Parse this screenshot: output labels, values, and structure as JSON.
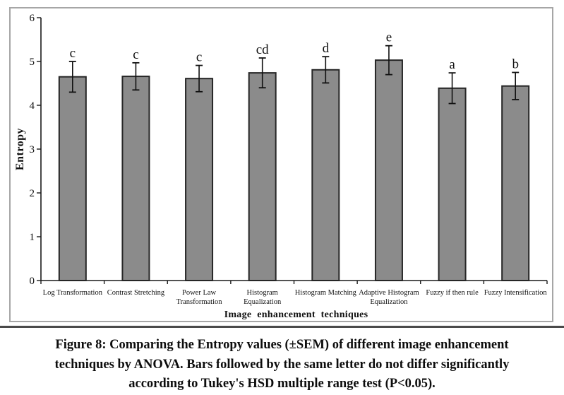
{
  "figure": {
    "caption": {
      "line1": "Figure 8: Comparing the Entropy values (±SEM) of different image enhancement",
      "line2": "techniques by ANOVA. Bars followed by the same letter do not differ significantly",
      "line3": "according to Tukey's HSD multiple range test (P<0.05)."
    }
  },
  "chart_data": {
    "type": "bar",
    "title": "",
    "xlabel": "Image enhancement techniques",
    "ylabel": "Entropy",
    "ylim": [
      0,
      6
    ],
    "yticks": [
      0,
      1,
      2,
      3,
      4,
      5,
      6
    ],
    "grid": false,
    "legend": false,
    "categories": [
      "Log Transformation",
      "Contrast Stretching",
      "Power Law Transformation",
      "Histogram Equalization",
      "Histogram Matching",
      "Adaptive Histogram Equalization",
      "Fuzzy if then rule",
      "Fuzzy Intensification"
    ],
    "category_label_lines": [
      [
        "Log Transformation"
      ],
      [
        "Contrast Stretching"
      ],
      [
        "Power Law",
        "Transformation"
      ],
      [
        "Histogram",
        "Equalization"
      ],
      [
        "Histogram Matching"
      ],
      [
        "Adaptive Histogram",
        "Equalization"
      ],
      [
        "Fuzzy if then rule"
      ],
      [
        "Fuzzy Intensification"
      ]
    ],
    "values": [
      4.65,
      4.66,
      4.61,
      4.74,
      4.81,
      5.03,
      4.39,
      4.44
    ],
    "sem": [
      0.35,
      0.31,
      0.3,
      0.34,
      0.3,
      0.33,
      0.35,
      0.31
    ],
    "significance_letters": [
      "c",
      "c",
      "c",
      "cd",
      "d",
      "e",
      "a",
      "b"
    ],
    "colors": {
      "bar_fill": "#8b8b8b",
      "bar_stroke": "#262626",
      "error_bar": "#111111",
      "axis": "#1a1a1a",
      "frame_border": "#a6a6a6",
      "separator": "#4a4a4a",
      "caption_text": "#0d0d0d"
    }
  }
}
